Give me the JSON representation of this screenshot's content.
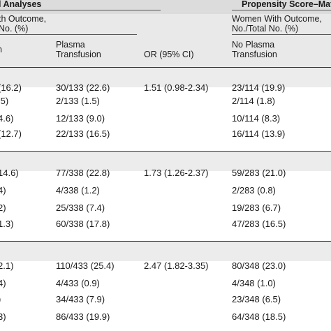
{
  "header": {
    "group_left": "l Analyses",
    "group_right": "Propensity Score–Matche",
    "outcome_left_1": "th Outcome,",
    "outcome_left_2": "No. (%)",
    "outcome_right_1": "Women With Outcome,",
    "outcome_right_2": "No./Total No. (%)",
    "col1_fragment": "n",
    "col2_line1": "Plasma",
    "col2_line2": "Transfusion",
    "col3": "OR (95% CI)",
    "col4_line1": "No Plasma",
    "col4_line2": "Transfusion"
  },
  "sections": [
    {
      "rows": [
        {
          "c1": "(16.2)",
          "c2": "30/133 (22.6)",
          "c3": "1.51 (0.98-2.34)",
          "c4": "23/114 (19.9)"
        },
        {
          "c1": ".5)",
          "c2": "2/133 (1.5)",
          "c4": "2/114 (1.8)"
        },
        {
          "c1": "4.6)",
          "c2": "12/133 (9.0)",
          "c4": "10/114 (8.3)"
        },
        {
          "c1": "(12.7)",
          "c2": "22/133 (16.5)",
          "c4": "16/114 (13.9)"
        }
      ]
    },
    {
      "rows": [
        {
          "c1": "14.6)",
          "c2": "77/338 (22.8)",
          "c3": "1.73 (1.26-2.37)",
          "c4": "59/283 (21.0)"
        },
        {
          "c1": "4)",
          "c2": "4/338 (1.2)",
          "c4": "2/283 (0.8)"
        },
        {
          "c1": "2)",
          "c2": "25/338 (7.4)",
          "c4": "19/283 (6.7)"
        },
        {
          "c1": "1.3)",
          "c2": "60/338 (17.8)",
          "c4": "47/283 (16.5)"
        }
      ]
    },
    {
      "rows": [
        {
          "c1": "2.1)",
          "c2": "110/433 (25.4)",
          "c3": "2.47 (1.82-3.35)",
          "c4": "80/348 (23.0)"
        },
        {
          "c1": "4)",
          "c2": "4/433 (0.9)",
          "c4": "4/348 (1.0)"
        },
        {
          "c1": ")",
          "c2": "34/433 (7.9)",
          "c4": "23/348 (6.5)"
        },
        {
          "c1": "3)",
          "c2": "86/433 (19.9)",
          "c4": "64/348 (18.5)"
        }
      ]
    }
  ]
}
